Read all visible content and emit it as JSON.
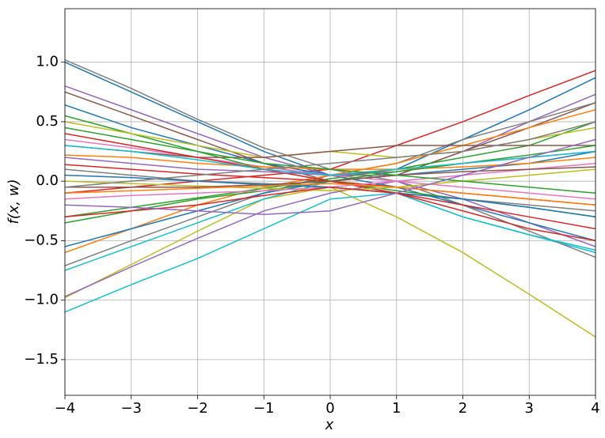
{
  "chart_data": {
    "type": "line",
    "xlabel": "x",
    "ylabel": "f(x, w)",
    "x": [
      -4,
      -3,
      -2,
      -1,
      0,
      1,
      2,
      3,
      4
    ],
    "xlim": [
      -4,
      4
    ],
    "xticks": [
      {
        "value": -4,
        "label": "−4"
      },
      {
        "value": -3,
        "label": "−3"
      },
      {
        "value": -2,
        "label": "−2"
      },
      {
        "value": -1,
        "label": "−1"
      },
      0,
      1,
      2,
      3,
      4
    ],
    "ylim": [
      -1.8,
      1.45
    ],
    "yticks": [
      {
        "value": -1.5,
        "label": "−1.5"
      },
      {
        "value": -1.0,
        "label": "−1.0"
      },
      {
        "value": -0.5,
        "label": "−0.5"
      },
      {
        "value": 0,
        "label": "0.0"
      },
      {
        "value": 0.5,
        "label": "0.5"
      },
      {
        "value": 1.0,
        "label": "1.0"
      }
    ],
    "grid": true,
    "series": [
      {
        "color": "#1f77b4",
        "values": [
          1.0,
          0.75,
          0.5,
          0.25,
          0.05,
          0.1,
          0.35,
          0.6,
          0.87
        ]
      },
      {
        "color": "#d62728",
        "values": [
          -0.1,
          -0.05,
          0,
          0.05,
          0.1,
          0.3,
          0.5,
          0.72,
          0.93
        ]
      },
      {
        "color": "#bcbd22",
        "values": [
          -0.98,
          -0.7,
          -0.42,
          -0.15,
          -0.05,
          -0.3,
          -0.6,
          -0.95,
          -1.31
        ]
      },
      {
        "color": "#17becf",
        "values": [
          -1.1,
          -0.87,
          -0.65,
          -0.4,
          -0.15,
          -0.1,
          -0.3,
          -0.45,
          -0.6
        ]
      },
      {
        "color": "#7f7f7f",
        "values": [
          1.02,
          0.78,
          0.52,
          0.28,
          0.1,
          0.0,
          -0.2,
          -0.42,
          -0.64
        ]
      },
      {
        "color": "#9467bd",
        "values": [
          0.8,
          0.6,
          0.4,
          0.2,
          0.05,
          0.05,
          0.25,
          0.5,
          0.73
        ]
      },
      {
        "color": "#8c564b",
        "values": [
          0.75,
          0.55,
          0.35,
          0.15,
          0.0,
          0.05,
          0.25,
          0.45,
          0.66
        ]
      },
      {
        "color": "#9467bd",
        "values": [
          -0.97,
          -0.72,
          -0.48,
          -0.25,
          -0.1,
          0.0,
          -0.15,
          -0.35,
          -0.55
        ]
      },
      {
        "color": "#7f7f7f",
        "values": [
          -0.71,
          -0.5,
          -0.3,
          -0.1,
          0.05,
          0.15,
          0.35,
          0.5,
          0.66
        ]
      },
      {
        "color": "#1f77b4",
        "values": [
          0.64,
          0.45,
          0.3,
          0.15,
          0.05,
          -0.05,
          -0.2,
          -0.35,
          -0.5
        ]
      },
      {
        "color": "#ff7f0e",
        "values": [
          -0.6,
          -0.4,
          -0.2,
          -0.05,
          0.05,
          0.15,
          0.3,
          0.45,
          0.6
        ]
      },
      {
        "color": "#2ca02c",
        "values": [
          -0.3,
          -0.22,
          -0.14,
          -0.06,
          0.02,
          0.1,
          0.2,
          0.3,
          0.5
        ]
      },
      {
        "color": "#17becf",
        "values": [
          -0.75,
          -0.55,
          -0.35,
          -0.15,
          0.0,
          -0.1,
          -0.3,
          -0.45,
          -0.58
        ]
      },
      {
        "color": "#e377c2",
        "values": [
          0.35,
          0.28,
          0.2,
          0.12,
          0.05,
          0.0,
          -0.05,
          -0.1,
          -0.15
        ]
      },
      {
        "color": "#d62728",
        "values": [
          0.14,
          0.1,
          0.06,
          0.03,
          0.0,
          -0.05,
          -0.1,
          -0.15,
          -0.2
        ]
      },
      {
        "color": "#2ca02c",
        "values": [
          0.55,
          0.4,
          0.25,
          0.1,
          0.0,
          -0.08,
          -0.15,
          -0.22,
          -0.3
        ]
      },
      {
        "color": "#bcbd22",
        "values": [
          0.5,
          0.4,
          0.3,
          0.2,
          0.25,
          0.2,
          0.25,
          0.35,
          0.45
        ]
      },
      {
        "color": "#8c564b",
        "values": [
          0.3,
          0.25,
          0.2,
          0.2,
          0.25,
          0.3,
          0.3,
          0.3,
          0.3
        ]
      },
      {
        "color": "#1f77b4",
        "values": [
          -0.55,
          -0.4,
          -0.25,
          -0.1,
          0.0,
          0.05,
          0.1,
          0.15,
          0.25
        ]
      },
      {
        "color": "#ff7f0e",
        "values": [
          0.22,
          0.2,
          0.15,
          0.12,
          0.1,
          0.1,
          0.12,
          0.15,
          0.2
        ]
      },
      {
        "color": "#d62728",
        "values": [
          0.4,
          0.3,
          0.2,
          0.1,
          0.0,
          -0.1,
          -0.25,
          -0.4,
          -0.5
        ]
      },
      {
        "color": "#7f7f7f",
        "values": [
          0.1,
          0.05,
          0.0,
          -0.02,
          -0.05,
          -0.1,
          -0.15,
          -0.2,
          -0.25
        ]
      },
      {
        "color": "#9467bd",
        "values": [
          0.2,
          0.15,
          0.1,
          0.08,
          0.05,
          0.08,
          0.15,
          0.2,
          0.25
        ]
      },
      {
        "color": "#2ca02c",
        "values": [
          -0.35,
          -0.25,
          -0.15,
          -0.08,
          0.0,
          0.08,
          0.15,
          0.22,
          0.3
        ]
      },
      {
        "color": "#17becf",
        "values": [
          0.3,
          0.25,
          0.18,
          0.1,
          0.05,
          0.1,
          0.15,
          0.2,
          0.25
        ]
      },
      {
        "color": "#bcbd22",
        "values": [
          0.0,
          -0.02,
          -0.04,
          -0.06,
          -0.08,
          -0.05,
          0.0,
          0.05,
          0.1
        ]
      },
      {
        "color": "#e377c2",
        "values": [
          -0.15,
          -0.12,
          -0.1,
          -0.08,
          -0.05,
          0.0,
          0.05,
          0.1,
          0.15
        ]
      },
      {
        "color": "#8c564b",
        "values": [
          -0.05,
          -0.05,
          -0.05,
          -0.03,
          0.0,
          0.05,
          0.08,
          0.1,
          0.12
        ]
      },
      {
        "color": "#1f77b4",
        "values": [
          0.05,
          0.03,
          0.0,
          -0.03,
          -0.05,
          -0.1,
          -0.15,
          -0.22,
          -0.3
        ]
      },
      {
        "color": "#ff7f0e",
        "values": [
          -0.1,
          -0.08,
          -0.06,
          -0.04,
          -0.02,
          -0.05,
          -0.1,
          -0.15,
          -0.2
        ]
      },
      {
        "color": "#2ca02c",
        "values": [
          0.45,
          0.35,
          0.25,
          0.15,
          0.1,
          0.05,
          0.0,
          -0.05,
          -0.1
        ]
      },
      {
        "color": "#d62728",
        "values": [
          -0.3,
          -0.25,
          -0.2,
          -0.12,
          -0.05,
          -0.1,
          -0.2,
          -0.3,
          -0.4
        ]
      },
      {
        "color": "#9467bd",
        "values": [
          -0.2,
          -0.22,
          -0.25,
          -0.28,
          -0.25,
          -0.1,
          0.05,
          0.2,
          0.35
        ]
      },
      {
        "color": "#7f7f7f",
        "values": [
          -0.05,
          0.0,
          0.05,
          0.1,
          0.15,
          0.2,
          0.25,
          0.35,
          0.5
        ]
      }
    ]
  }
}
